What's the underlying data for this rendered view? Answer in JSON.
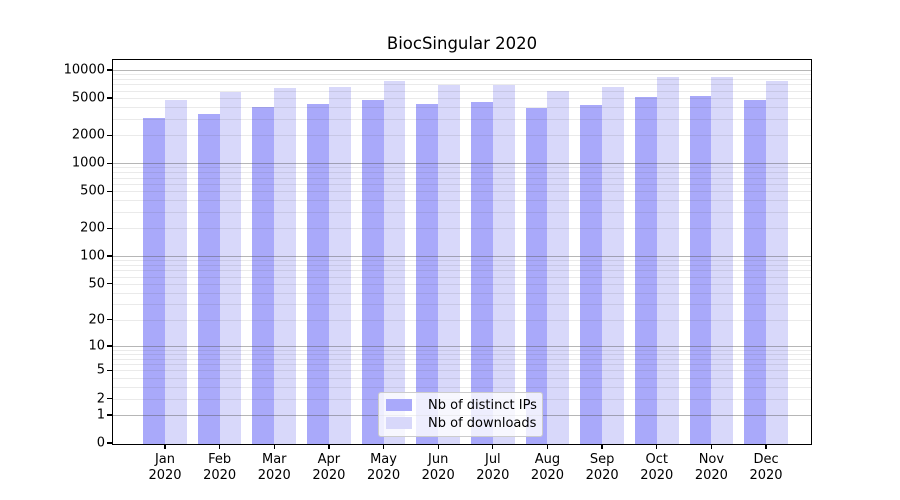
{
  "chart_data": {
    "type": "bar",
    "title": "BiocSingular 2020",
    "categories": [
      "Jan 2020",
      "Feb 2020",
      "Mar 2020",
      "Apr 2020",
      "May 2020",
      "Jun 2020",
      "Jul 2020",
      "Aug 2020",
      "Sep 2020",
      "Oct 2020",
      "Nov 2020",
      "Dec 2020"
    ],
    "series": [
      {
        "name": "Nb of distinct IPs",
        "color": "#a9a9fa",
        "values": [
          3100,
          3450,
          4100,
          4400,
          4900,
          4450,
          4700,
          4000,
          4350,
          5300,
          5350,
          4850
        ]
      },
      {
        "name": "Nb of downloads",
        "color": "#d8d8fa",
        "values": [
          4850,
          6000,
          6500,
          6700,
          7900,
          7050,
          7100,
          6100,
          6700,
          8600,
          8700,
          7900
        ]
      }
    ],
    "xlabel": "",
    "ylabel": "",
    "yscale": "log1p",
    "yticks": [
      0,
      1,
      2,
      5,
      10,
      20,
      50,
      100,
      200,
      500,
      1000,
      2000,
      5000,
      10000
    ],
    "ylim": [
      0,
      12800
    ],
    "grid": true,
    "legend_position": "lower center",
    "background_color": "#ffffff",
    "spine_color": "#000000"
  }
}
